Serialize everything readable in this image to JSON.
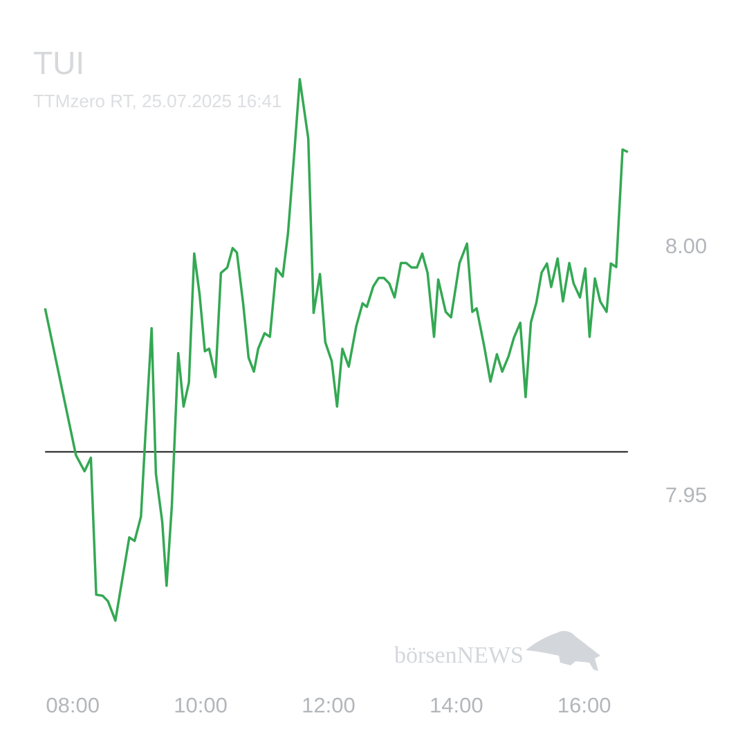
{
  "chart_data": {
    "type": "line",
    "title": "TUI",
    "subtitle": "TTMzero RT, 25.07.2025 16:41",
    "watermark": "börsenNEWS",
    "x": [
      "07:34",
      "08:03",
      "08:11",
      "08:17",
      "08:22",
      "08:28",
      "08:33",
      "08:40",
      "08:53",
      "08:58",
      "09:04",
      "09:08",
      "09:14",
      "09:18",
      "09:24",
      "09:28",
      "09:33",
      "09:39",
      "09:44",
      "09:49",
      "09:54",
      "09:59",
      "10:04",
      "10:08",
      "10:14",
      "10:19",
      "10:25",
      "10:30",
      "10:34",
      "10:40",
      "10:45",
      "10:50",
      "10:54",
      "11:00",
      "11:05",
      "11:11",
      "11:17",
      "11:22",
      "11:28",
      "11:33",
      "11:41",
      "11:46",
      "11:52",
      "11:57",
      "12:03",
      "12:08",
      "12:13",
      "12:19",
      "12:26",
      "12:32",
      "12:36",
      "12:42",
      "12:47",
      "12:52",
      "12:57",
      "13:02",
      "13:08",
      "13:13",
      "13:18",
      "13:23",
      "13:28",
      "13:33",
      "13:39",
      "13:43",
      "13:50",
      "13:55",
      "14:03",
      "14:10",
      "14:15",
      "14:19",
      "14:26",
      "14:32",
      "14:38",
      "14:43",
      "14:49",
      "14:54",
      "15:00",
      "15:05",
      "15:10",
      "15:15",
      "15:20",
      "15:25",
      "15:29",
      "15:35",
      "15:40",
      "15:46",
      "15:50",
      "15:56",
      "16:01",
      "16:05",
      "16:10",
      "16:15",
      "16:21",
      "16:25",
      "16:30",
      "16:36",
      "16:41"
    ],
    "series": [
      {
        "color": "#34a853",
        "values": [
          7.9878,
          7.9583,
          7.9551,
          7.9578,
          7.9303,
          7.9301,
          7.929,
          7.9251,
          7.9418,
          7.9411,
          7.946,
          7.9618,
          7.9838,
          7.9546,
          7.9449,
          7.9321,
          7.9483,
          7.9788,
          7.9681,
          7.9729,
          7.9988,
          7.9907,
          7.9792,
          7.9797,
          7.974,
          7.9949,
          7.996,
          7.9999,
          7.999,
          7.9886,
          7.9779,
          7.9751,
          7.9797,
          7.9828,
          7.9821,
          7.9958,
          7.9942,
          8.0029,
          8.0192,
          8.0338,
          8.0219,
          7.9869,
          7.9947,
          7.981,
          7.9772,
          7.9681,
          7.9797,
          7.9761,
          7.9842,
          7.9888,
          7.9881,
          7.9922,
          7.9939,
          7.9939,
          7.9928,
          7.99,
          7.9969,
          7.9969,
          7.996,
          7.996,
          7.9988,
          7.9949,
          7.9821,
          7.9936,
          7.9871,
          7.986,
          7.9969,
          8.0008,
          7.9871,
          7.9878,
          7.9803,
          7.9731,
          7.9786,
          7.9751,
          7.9782,
          7.9819,
          7.9849,
          7.97,
          7.985,
          7.9889,
          7.995,
          7.9968,
          7.9921,
          7.9978,
          7.9892,
          7.9969,
          7.9928,
          7.99,
          7.9958,
          7.9821,
          7.9938,
          7.9892,
          7.9871,
          7.9968,
          7.9961,
          8.0197,
          8.0192
        ]
      }
    ],
    "reference_line": 7.959,
    "reference_color": "#444444",
    "xlim": [
      "07:30",
      "16:45"
    ],
    "xticks": [
      "08:00",
      "10:00",
      "12:00",
      "14:00",
      "16:00"
    ],
    "ylim": [
      7.92,
      8.04
    ],
    "yticks": [
      7.95,
      {
        "value": 8,
        "label": "8.00"
      }
    ],
    "grid": false
  }
}
